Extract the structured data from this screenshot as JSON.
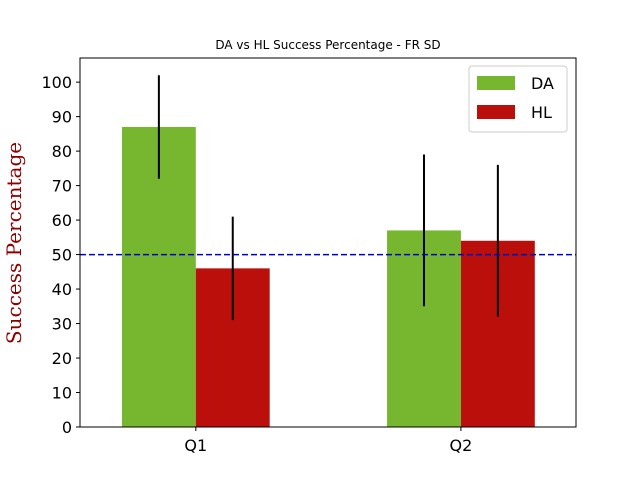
{
  "chart_data": {
    "type": "bar",
    "title": "DA vs HL Success Percentage - FR SD",
    "xlabel": "",
    "ylabel": "Success Percentage",
    "categories": [
      "Q1",
      "Q2"
    ],
    "series": [
      {
        "name": "DA",
        "values": [
          87,
          57
        ],
        "errors": [
          15,
          22
        ],
        "color": "#77b72f"
      },
      {
        "name": "HL",
        "values": [
          46,
          54
        ],
        "errors": [
          15,
          22
        ],
        "color": "#bb0f0b"
      }
    ],
    "ylim": [
      0,
      107
    ],
    "yticks": [
      0,
      10,
      20,
      30,
      40,
      50,
      60,
      70,
      80,
      90,
      100
    ],
    "reference_line": {
      "value": 50,
      "color": "#0000cc",
      "style": "dashed"
    },
    "grid": false,
    "legend": "top-right",
    "ylabel_color": "#8b0000",
    "errorbar_color": "#000000"
  }
}
